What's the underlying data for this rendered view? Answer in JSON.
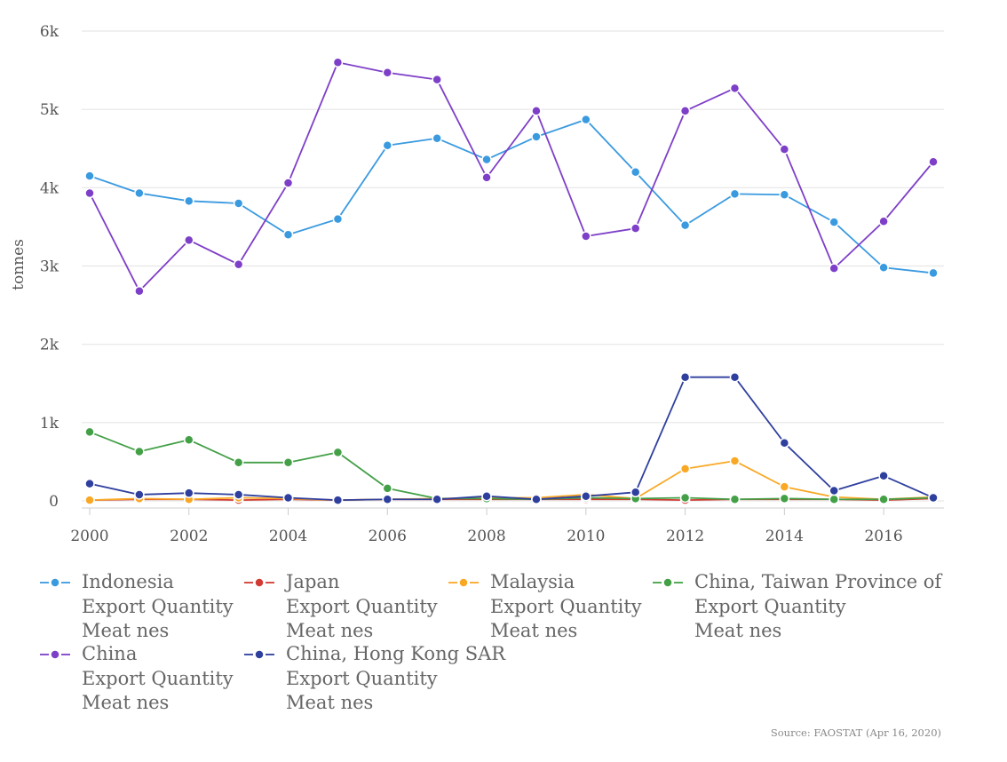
{
  "chart_data": {
    "type": "line",
    "ylabel": "tonnes",
    "xlabel": "",
    "xlim": [
      2000,
      2017
    ],
    "ylim": [
      0,
      6000
    ],
    "x_ticks": [
      2000,
      2002,
      2004,
      2006,
      2008,
      2010,
      2012,
      2014,
      2016
    ],
    "x_tick_labels": [
      "2000",
      "2002",
      "2004",
      "2006",
      "2008",
      "2010",
      "2012",
      "2014",
      "2016"
    ],
    "y_ticks": [
      0,
      1000,
      2000,
      3000,
      4000,
      5000,
      6000
    ],
    "y_tick_labels": [
      "0",
      "1k",
      "2k",
      "3k",
      "4k",
      "5k",
      "6k"
    ],
    "grid": true,
    "legend_position": "bottom",
    "x": [
      2000,
      2001,
      2002,
      2003,
      2004,
      2005,
      2006,
      2007,
      2008,
      2009,
      2010,
      2011,
      2012,
      2013,
      2014,
      2015,
      2016,
      2017
    ],
    "series": [
      {
        "name": "Indonesia",
        "line2": "Export Quantity",
        "line3": "Meat nes",
        "color": "#3a9ae0",
        "values": [
          4150,
          3930,
          3830,
          3800,
          3400,
          3600,
          4540,
          4630,
          4360,
          4650,
          4870,
          4200,
          3520,
          3920,
          3910,
          3560,
          2980,
          2910
        ]
      },
      {
        "name": "Japan",
        "line2": "Export Quantity",
        "line3": "Meat nes",
        "color": "#d23a33",
        "values": [
          10,
          20,
          20,
          10,
          20,
          10,
          20,
          20,
          20,
          20,
          20,
          20,
          10,
          20,
          20,
          20,
          10,
          30
        ]
      },
      {
        "name": "Malaysia",
        "line2": "Export Quantity",
        "line3": "Meat nes",
        "color": "#f9a825",
        "values": [
          10,
          30,
          20,
          40,
          30,
          10,
          20,
          30,
          40,
          40,
          80,
          30,
          410,
          510,
          180,
          50,
          20,
          50
        ]
      },
      {
        "name": "China, Taiwan Province of",
        "line2": "Export Quantity",
        "line3": "Meat nes",
        "color": "#43a047",
        "values": [
          880,
          630,
          780,
          490,
          490,
          620,
          160,
          30,
          30,
          20,
          40,
          30,
          40,
          20,
          30,
          20,
          20,
          40
        ]
      },
      {
        "name": "China",
        "line2": "Export Quantity",
        "line3": "Meat nes",
        "color": "#7e3fc8",
        "values": [
          3930,
          2680,
          3330,
          3020,
          4060,
          5600,
          5470,
          5380,
          4130,
          4980,
          3380,
          3480,
          4980,
          5270,
          4490,
          2970,
          3570,
          4330
        ]
      },
      {
        "name": "China, Hong Kong SAR",
        "line2": "Export Quantity",
        "line3": "Meat nes",
        "color": "#2e3f9e",
        "values": [
          220,
          80,
          100,
          80,
          40,
          10,
          20,
          20,
          60,
          20,
          60,
          110,
          1580,
          1580,
          740,
          130,
          320,
          40
        ]
      }
    ]
  },
  "source": "Source: FAOSTAT (Apr 16, 2020)"
}
